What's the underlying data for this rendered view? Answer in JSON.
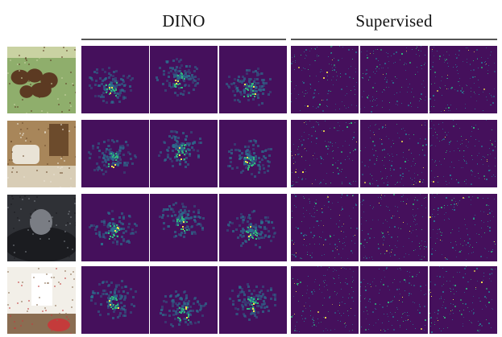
{
  "header": {
    "dino_label": "DINO",
    "supervised_label": "Supervised"
  },
  "figure": {
    "rows": [
      {
        "subject": "cows",
        "photo_colors": [
          "#8fae6c",
          "#5c3a22",
          "#c9d2a2"
        ]
      },
      {
        "subject": "bathroom",
        "photo_colors": [
          "#a8865a",
          "#e9e3d6",
          "#6c4b2c"
        ]
      },
      {
        "subject": "cat",
        "photo_colors": [
          "#2f3136",
          "#7a7d84",
          "#1b1c20"
        ]
      },
      {
        "subject": "living-room",
        "photo_colors": [
          "#f2efe8",
          "#c43b3b",
          "#8a6d52"
        ]
      }
    ],
    "colors": {
      "map_background": "#45105c",
      "map_mid": "#2b6f8e",
      "map_bright": "#31b57b",
      "map_hot": "#f4e14a"
    }
  }
}
